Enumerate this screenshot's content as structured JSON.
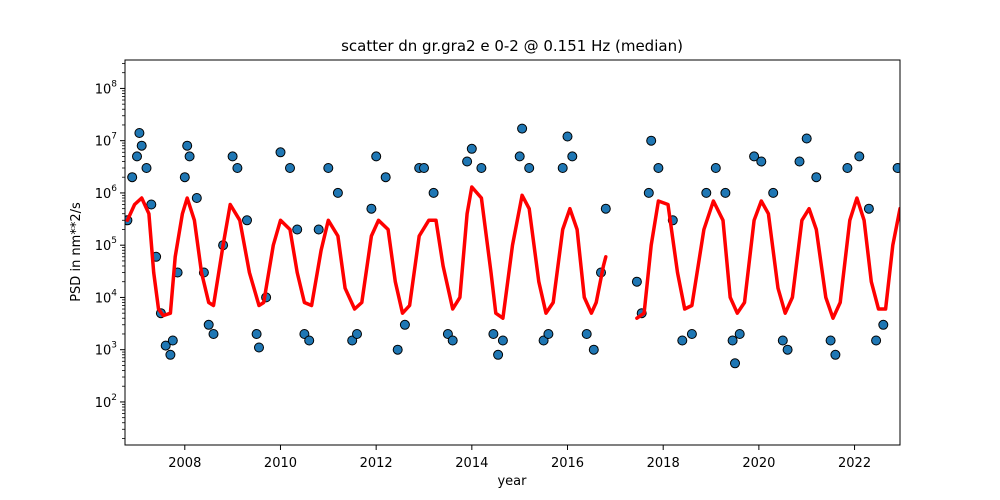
{
  "chart_data": {
    "type": "scatter",
    "title": "scatter dn gr.gra2 e 0-2 @ 0.151 Hz (median)",
    "xlabel": "year",
    "ylabel": "PSD in nm**2/s",
    "xlim": [
      2006.75,
      2022.95
    ],
    "ylim": [
      15,
      350000000
    ],
    "yscale": "log",
    "x_ticks": [
      2008,
      2010,
      2012,
      2014,
      2016,
      2018,
      2020,
      2022
    ],
    "x_tick_labels": [
      "2008",
      "2010",
      "2012",
      "2014",
      "2016",
      "2018",
      "2020",
      "2022"
    ],
    "y_ticks": [
      100,
      1000,
      10000,
      100000,
      1000000,
      10000000,
      100000000
    ],
    "y_tick_labels": [
      {
        "base": "10",
        "exp": "2"
      },
      {
        "base": "10",
        "exp": "3"
      },
      {
        "base": "10",
        "exp": "4"
      },
      {
        "base": "10",
        "exp": "5"
      },
      {
        "base": "10",
        "exp": "6"
      },
      {
        "base": "10",
        "exp": "7"
      },
      {
        "base": "10",
        "exp": "8"
      }
    ],
    "grid": false,
    "gaps": [
      [
        2016.85,
        2017.4
      ]
    ],
    "series": [
      {
        "kind": "scatter",
        "color": "#1f77b4",
        "edgecolor": "#000000",
        "description": "daily PSD values, strong annual cycle between ~1e3 and ~5e6",
        "points": [
          [
            2006.8,
            300000
          ],
          [
            2006.9,
            2000000
          ],
          [
            2007.0,
            5000000
          ],
          [
            2007.05,
            14000000
          ],
          [
            2007.1,
            8000000
          ],
          [
            2007.2,
            3000000
          ],
          [
            2007.3,
            600000
          ],
          [
            2007.4,
            60000
          ],
          [
            2007.5,
            5000
          ],
          [
            2007.6,
            1200
          ],
          [
            2007.7,
            800
          ],
          [
            2007.75,
            1500
          ],
          [
            2007.85,
            30000
          ],
          [
            2008.0,
            2000000
          ],
          [
            2008.05,
            8000000
          ],
          [
            2008.1,
            5000000
          ],
          [
            2008.25,
            800000
          ],
          [
            2008.4,
            30000
          ],
          [
            2008.5,
            3000
          ],
          [
            2008.6,
            2000
          ],
          [
            2008.8,
            100000
          ],
          [
            2009.0,
            5000000
          ],
          [
            2009.1,
            3000000
          ],
          [
            2009.3,
            300000
          ],
          [
            2009.5,
            2000
          ],
          [
            2009.55,
            1100
          ],
          [
            2009.7,
            10000
          ],
          [
            2010.0,
            6000000
          ],
          [
            2010.2,
            3000000
          ],
          [
            2010.35,
            200000
          ],
          [
            2010.5,
            2000
          ],
          [
            2010.6,
            1500
          ],
          [
            2010.8,
            200000
          ],
          [
            2011.0,
            3000000
          ],
          [
            2011.2,
            1000000
          ],
          [
            2011.5,
            1500
          ],
          [
            2011.6,
            2000
          ],
          [
            2011.9,
            500000
          ],
          [
            2012.0,
            5000000
          ],
          [
            2012.2,
            2000000
          ],
          [
            2012.45,
            1000
          ],
          [
            2012.6,
            3000
          ],
          [
            2012.9,
            3000000
          ],
          [
            2013.0,
            3000000
          ],
          [
            2013.2,
            1000000
          ],
          [
            2013.5,
            2000
          ],
          [
            2013.6,
            1500
          ],
          [
            2013.9,
            4000000
          ],
          [
            2014.0,
            7000000
          ],
          [
            2014.2,
            3000000
          ],
          [
            2014.45,
            2000
          ],
          [
            2014.55,
            800
          ],
          [
            2014.65,
            1500
          ],
          [
            2015.0,
            5000000
          ],
          [
            2015.05,
            17000000
          ],
          [
            2015.2,
            3000000
          ],
          [
            2015.5,
            1500
          ],
          [
            2015.6,
            2000
          ],
          [
            2015.9,
            3000000
          ],
          [
            2016.0,
            12000000
          ],
          [
            2016.1,
            5000000
          ],
          [
            2016.4,
            2000
          ],
          [
            2016.55,
            1000
          ],
          [
            2016.7,
            30000
          ],
          [
            2016.8,
            500000
          ],
          [
            2017.45,
            20000
          ],
          [
            2017.55,
            5000
          ],
          [
            2017.7,
            1000000
          ],
          [
            2017.75,
            10000000
          ],
          [
            2017.9,
            3000000
          ],
          [
            2018.2,
            300000
          ],
          [
            2018.4,
            1500
          ],
          [
            2018.6,
            2000
          ],
          [
            2018.9,
            1000000
          ],
          [
            2019.1,
            3000000
          ],
          [
            2019.3,
            1000000
          ],
          [
            2019.45,
            1500
          ],
          [
            2019.5,
            550
          ],
          [
            2019.6,
            2000
          ],
          [
            2019.9,
            5000000
          ],
          [
            2020.05,
            4000000
          ],
          [
            2020.3,
            1000000
          ],
          [
            2020.5,
            1500
          ],
          [
            2020.6,
            1000
          ],
          [
            2020.85,
            4000000
          ],
          [
            2021.0,
            11000000
          ],
          [
            2021.2,
            2000000
          ],
          [
            2021.5,
            1500
          ],
          [
            2021.6,
            800
          ],
          [
            2021.85,
            3000000
          ],
          [
            2022.1,
            5000000
          ],
          [
            2022.3,
            500000
          ],
          [
            2022.45,
            1500
          ],
          [
            2022.6,
            3000
          ],
          [
            2022.9,
            3000000
          ]
        ]
      },
      {
        "kind": "line",
        "color": "#ff0000",
        "description": "running median",
        "points": [
          [
            2006.8,
            300000
          ],
          [
            2006.95,
            600000
          ],
          [
            2007.1,
            800000
          ],
          [
            2007.25,
            400000
          ],
          [
            2007.35,
            30000
          ],
          [
            2007.45,
            6000
          ],
          [
            2007.55,
            4500
          ],
          [
            2007.7,
            5000
          ],
          [
            2007.8,
            60000
          ],
          [
            2007.95,
            400000
          ],
          [
            2008.05,
            800000
          ],
          [
            2008.2,
            300000
          ],
          [
            2008.35,
            30000
          ],
          [
            2008.5,
            8000
          ],
          [
            2008.6,
            7000
          ],
          [
            2008.8,
            100000
          ],
          [
            2008.95,
            600000
          ],
          [
            2009.15,
            300000
          ],
          [
            2009.35,
            30000
          ],
          [
            2009.55,
            7000
          ],
          [
            2009.65,
            8000
          ],
          [
            2009.85,
            100000
          ],
          [
            2010.0,
            300000
          ],
          [
            2010.2,
            200000
          ],
          [
            2010.35,
            30000
          ],
          [
            2010.5,
            8000
          ],
          [
            2010.65,
            7000
          ],
          [
            2010.85,
            80000
          ],
          [
            2011.0,
            300000
          ],
          [
            2011.2,
            150000
          ],
          [
            2011.35,
            15000
          ],
          [
            2011.55,
            6000
          ],
          [
            2011.7,
            8000
          ],
          [
            2011.9,
            150000
          ],
          [
            2012.05,
            300000
          ],
          [
            2012.25,
            200000
          ],
          [
            2012.4,
            20000
          ],
          [
            2012.55,
            5000
          ],
          [
            2012.7,
            7000
          ],
          [
            2012.9,
            150000
          ],
          [
            2013.1,
            300000
          ],
          [
            2013.25,
            300000
          ],
          [
            2013.4,
            40000
          ],
          [
            2013.6,
            6000
          ],
          [
            2013.75,
            10000
          ],
          [
            2013.9,
            400000
          ],
          [
            2014.0,
            1300000
          ],
          [
            2014.2,
            800000
          ],
          [
            2014.4,
            30000
          ],
          [
            2014.5,
            5000
          ],
          [
            2014.65,
            4000
          ],
          [
            2014.85,
            100000
          ],
          [
            2015.05,
            900000
          ],
          [
            2015.2,
            500000
          ],
          [
            2015.4,
            20000
          ],
          [
            2015.55,
            5000
          ],
          [
            2015.7,
            8000
          ],
          [
            2015.9,
            200000
          ],
          [
            2016.05,
            500000
          ],
          [
            2016.2,
            200000
          ],
          [
            2016.35,
            10000
          ],
          [
            2016.5,
            5000
          ],
          [
            2016.6,
            8000
          ],
          [
            2016.75,
            40000
          ],
          [
            2016.8,
            60000
          ],
          [
            2017.45,
            4000
          ],
          [
            2017.6,
            5000
          ],
          [
            2017.75,
            100000
          ],
          [
            2017.9,
            700000
          ],
          [
            2018.1,
            600000
          ],
          [
            2018.3,
            30000
          ],
          [
            2018.45,
            6000
          ],
          [
            2018.6,
            7000
          ],
          [
            2018.85,
            200000
          ],
          [
            2019.05,
            700000
          ],
          [
            2019.25,
            300000
          ],
          [
            2019.4,
            10000
          ],
          [
            2019.55,
            5000
          ],
          [
            2019.7,
            8000
          ],
          [
            2019.9,
            300000
          ],
          [
            2020.05,
            700000
          ],
          [
            2020.2,
            400000
          ],
          [
            2020.4,
            15000
          ],
          [
            2020.55,
            5000
          ],
          [
            2020.7,
            10000
          ],
          [
            2020.9,
            300000
          ],
          [
            2021.05,
            500000
          ],
          [
            2021.2,
            200000
          ],
          [
            2021.4,
            10000
          ],
          [
            2021.55,
            4000
          ],
          [
            2021.7,
            8000
          ],
          [
            2021.9,
            300000
          ],
          [
            2022.05,
            800000
          ],
          [
            2022.2,
            300000
          ],
          [
            2022.35,
            20000
          ],
          [
            2022.5,
            6000
          ],
          [
            2022.65,
            6000
          ],
          [
            2022.8,
            100000
          ],
          [
            2022.95,
            500000
          ]
        ]
      }
    ]
  }
}
